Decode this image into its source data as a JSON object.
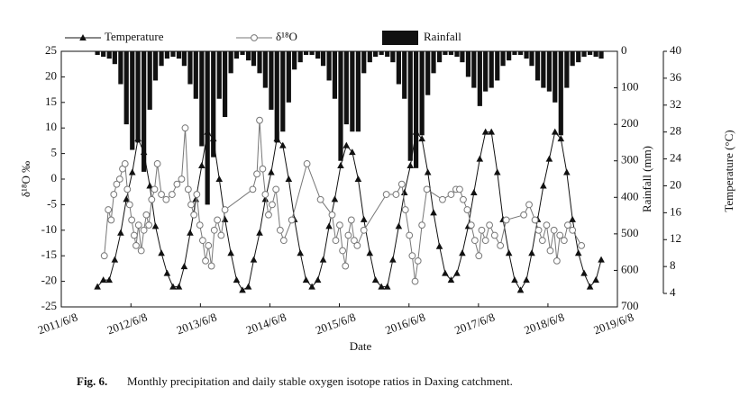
{
  "chart_data": {
    "type": "combo",
    "caption": {
      "label": "Fig. 6.",
      "text": "Monthly precipitation and daily stable oxygen isotope ratios in Daxing catchment."
    },
    "xlabel": "Date",
    "ylabel": "δ¹⁸O ‰",
    "y2label": "Rainfall (mm)",
    "y3label": "Temperature (°C)",
    "xlim": [
      "2011-06-08",
      "2019-06-08"
    ],
    "xticks": [
      {
        "value": "2011-06-08",
        "label": "2011/6/8"
      },
      {
        "value": "2012-06-08",
        "label": "2012/6/8"
      },
      {
        "value": "2013-06-08",
        "label": "2013/6/8"
      },
      {
        "value": "2014-06-08",
        "label": "2014/6/8"
      },
      {
        "value": "2015-06-08",
        "label": "2015/6/8"
      },
      {
        "value": "2016-06-08",
        "label": "2016/6/8"
      },
      {
        "value": "2017-06-08",
        "label": "2017/6/8"
      },
      {
        "value": "2018-06-08",
        "label": "2018/6/8"
      },
      {
        "value": "2019-06-08",
        "label": "2019/6/8"
      }
    ],
    "ylim": [
      -25,
      25
    ],
    "yticks": [
      -25,
      -20,
      -15,
      -10,
      -5,
      0,
      5,
      10,
      15,
      20,
      25
    ],
    "y2lim": [
      0,
      700
    ],
    "y2ticks": [
      0,
      100,
      200,
      300,
      400,
      500,
      600,
      700
    ],
    "y2_inverted": true,
    "y3lim": [
      2,
      40
    ],
    "y3ticks": [
      4,
      8,
      12,
      16,
      20,
      24,
      28,
      32,
      36,
      40
    ],
    "x": [
      "2011-12-15",
      "2012-01-15",
      "2012-02-15",
      "2012-03-15",
      "2012-04-15",
      "2012-05-15",
      "2012-06-15",
      "2012-07-15",
      "2012-08-15",
      "2012-09-15",
      "2012-10-15",
      "2012-11-15",
      "2012-12-15",
      "2013-01-15",
      "2013-02-15",
      "2013-03-15",
      "2013-04-15",
      "2013-05-15",
      "2013-06-15",
      "2013-07-15",
      "2013-08-15",
      "2013-09-15",
      "2013-10-15",
      "2013-11-15",
      "2013-12-15",
      "2014-01-15",
      "2014-02-15",
      "2014-03-15",
      "2014-04-15",
      "2014-05-15",
      "2014-06-15",
      "2014-07-15",
      "2014-08-15",
      "2014-09-15",
      "2014-10-15",
      "2014-11-15",
      "2014-12-15",
      "2015-01-15",
      "2015-02-15",
      "2015-03-15",
      "2015-04-15",
      "2015-05-15",
      "2015-06-15",
      "2015-07-15",
      "2015-08-15",
      "2015-09-15",
      "2015-10-15",
      "2015-11-15",
      "2015-12-15",
      "2016-01-15",
      "2016-02-15",
      "2016-03-15",
      "2016-04-15",
      "2016-05-15",
      "2016-06-15",
      "2016-07-15",
      "2016-08-15",
      "2016-09-15",
      "2016-10-15",
      "2016-11-15",
      "2016-12-15",
      "2017-01-15",
      "2017-02-15",
      "2017-03-15",
      "2017-04-15",
      "2017-05-15",
      "2017-06-15",
      "2017-07-15",
      "2017-08-15",
      "2017-09-15",
      "2017-10-15",
      "2017-11-15",
      "2017-12-15",
      "2018-01-15",
      "2018-02-15",
      "2018-03-15",
      "2018-04-15",
      "2018-05-15",
      "2018-06-15",
      "2018-07-15",
      "2018-08-15",
      "2018-09-15",
      "2018-10-15",
      "2018-11-15",
      "2018-12-15",
      "2019-01-15",
      "2019-02-15",
      "2019-03-15"
    ],
    "series": [
      {
        "name": "Temperature",
        "type": "line",
        "axis": "y3",
        "color": "#111111",
        "values": [
          5,
          6,
          6,
          9,
          13,
          18,
          22,
          27,
          25,
          20,
          14,
          10,
          7,
          5,
          5,
          8,
          13,
          18,
          23,
          28,
          27,
          21,
          15,
          10,
          6,
          4.5,
          5,
          9,
          13,
          18,
          22,
          27,
          26,
          21,
          15,
          10,
          6,
          5,
          6,
          9,
          14,
          18,
          23,
          26,
          25,
          21,
          15,
          10,
          6,
          5,
          5,
          9,
          14,
          19,
          23,
          28,
          27,
          22,
          16,
          11,
          7,
          6,
          7,
          10,
          14,
          19,
          24,
          28,
          28,
          22,
          15,
          10,
          6,
          4.5,
          6,
          10,
          15,
          20,
          24,
          28,
          27,
          22,
          15,
          10,
          7,
          5,
          6,
          9
        ]
      },
      {
        "name": "δ¹⁸O",
        "type": "line",
        "axis": "y",
        "color": "#777777",
        "x": [
          "2012-01-20",
          "2012-02-10",
          "2012-02-25",
          "2012-03-10",
          "2012-03-25",
          "2012-04-10",
          "2012-04-25",
          "2012-05-08",
          "2012-05-20",
          "2012-06-01",
          "2012-06-12",
          "2012-06-25",
          "2012-07-05",
          "2012-07-18",
          "2012-08-01",
          "2012-08-15",
          "2012-08-28",
          "2012-09-10",
          "2012-09-25",
          "2012-10-10",
          "2012-10-25",
          "2012-11-15",
          "2012-12-10",
          "2013-01-10",
          "2013-02-05",
          "2013-03-01",
          "2013-03-20",
          "2013-04-05",
          "2013-04-20",
          "2013-05-05",
          "2013-05-20",
          "2013-06-05",
          "2013-06-20",
          "2013-07-05",
          "2013-07-20",
          "2013-08-05",
          "2013-08-20",
          "2013-09-05",
          "2013-09-25",
          "2013-10-15",
          "2014-03-10",
          "2014-04-01",
          "2014-04-15",
          "2014-05-01",
          "2014-05-15",
          "2014-06-01",
          "2014-06-20",
          "2014-07-10",
          "2014-08-01",
          "2014-08-20",
          "2014-10-01",
          "2014-12-20",
          "2015-03-01",
          "2015-05-01",
          "2015-05-20",
          "2015-06-10",
          "2015-06-25",
          "2015-07-10",
          "2015-07-25",
          "2015-08-10",
          "2015-08-25",
          "2015-09-10",
          "2015-10-15",
          "2016-02-10",
          "2016-04-01",
          "2016-05-01",
          "2016-05-20",
          "2016-06-10",
          "2016-06-25",
          "2016-07-10",
          "2016-07-25",
          "2016-08-15",
          "2016-09-10",
          "2016-12-01",
          "2017-01-15",
          "2017-02-10",
          "2017-03-01",
          "2017-03-20",
          "2017-04-10",
          "2017-05-01",
          "2017-05-20",
          "2017-06-10",
          "2017-06-25",
          "2017-07-15",
          "2017-08-05",
          "2017-09-01",
          "2017-10-01",
          "2017-11-01",
          "2018-02-01",
          "2018-03-01",
          "2018-04-01",
          "2018-04-20",
          "2018-05-10",
          "2018-06-01",
          "2018-06-20",
          "2018-07-10",
          "2018-07-25",
          "2018-08-10",
          "2018-09-01",
          "2018-09-20",
          "2018-10-15",
          "2018-12-01"
        ],
        "values": [
          -15,
          -6,
          -8,
          -3,
          -1,
          0,
          2,
          3,
          -2,
          -5,
          -8,
          -11,
          -13,
          -9,
          -14,
          -10,
          -7,
          -9,
          -4,
          -2,
          3,
          -3,
          -4,
          -3,
          -1,
          0,
          10,
          -2,
          -5,
          -7,
          -3,
          -9,
          -12,
          -16,
          -13,
          -17,
          -10,
          -8,
          -11,
          -6,
          -2,
          1,
          11.5,
          2,
          -3,
          -7,
          -5,
          -2,
          -10,
          -12,
          -8,
          3,
          -4,
          -7,
          -12,
          -9,
          -14,
          -17,
          -11,
          -8,
          -12,
          -13,
          -10,
          -3,
          -3,
          -1,
          -6,
          -11,
          -15,
          -20,
          -16,
          -9,
          -2,
          -4,
          -3,
          -2,
          -2,
          -4,
          -6,
          -9,
          -12,
          -15,
          -10,
          -12,
          -9,
          -11,
          -13,
          -8,
          -7,
          -5,
          -8,
          -10,
          -12,
          -9,
          -14,
          -10,
          -16,
          -11,
          -12,
          -9,
          -10,
          -13
        ]
      },
      {
        "name": "Rainfall",
        "type": "bar",
        "axis": "y2",
        "color": "#111111",
        "values": [
          10,
          15,
          20,
          35,
          90,
          200,
          270,
          250,
          330,
          160,
          80,
          40,
          20,
          15,
          20,
          40,
          90,
          130,
          260,
          420,
          290,
          130,
          180,
          60,
          20,
          10,
          25,
          40,
          60,
          100,
          160,
          250,
          220,
          140,
          50,
          30,
          10,
          10,
          20,
          40,
          80,
          130,
          300,
          200,
          220,
          220,
          60,
          30,
          15,
          10,
          15,
          30,
          90,
          130,
          300,
          320,
          230,
          120,
          60,
          30,
          10,
          10,
          15,
          30,
          70,
          100,
          150,
          110,
          100,
          80,
          40,
          25,
          10,
          10,
          20,
          40,
          80,
          100,
          110,
          140,
          230,
          100,
          40,
          30,
          15,
          10,
          15,
          20
        ]
      }
    ]
  }
}
